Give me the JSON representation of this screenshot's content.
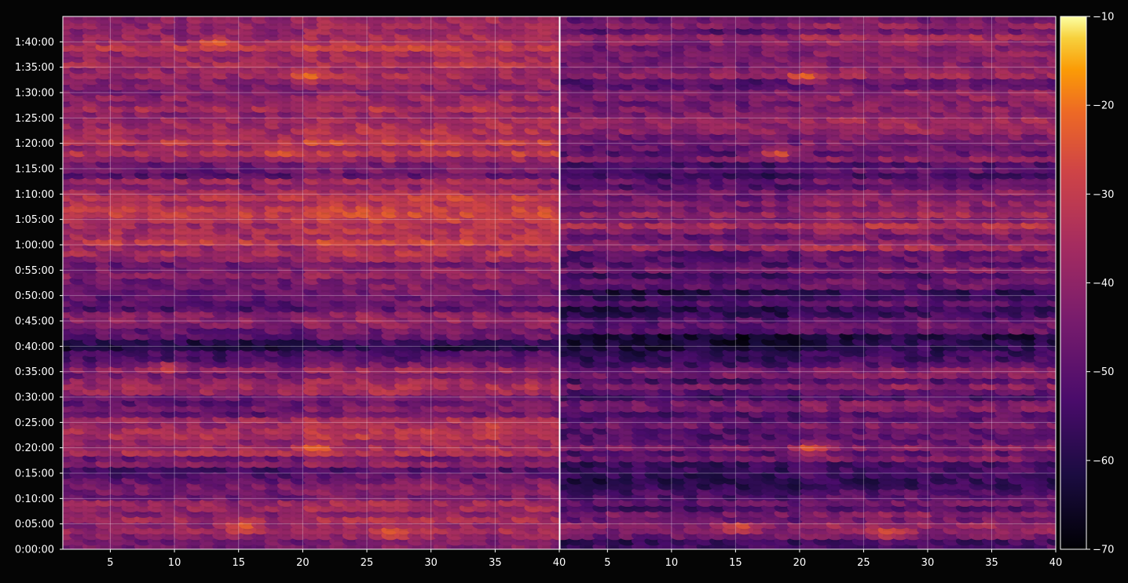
{
  "chart_data": {
    "type": "heatmap",
    "title": "",
    "xlabel": "",
    "ylabel": "",
    "background": "#050505",
    "colormap": "inferno",
    "grid": true,
    "panels": [
      {
        "xlim": [
          1.3,
          40
        ],
        "x_ticks": [
          "5",
          "10",
          "15",
          "20",
          "25",
          "30",
          "35",
          "40"
        ],
        "x_tick_values": [
          5,
          10,
          15,
          20,
          25,
          30,
          35,
          40
        ]
      },
      {
        "xlim": [
          1.3,
          40
        ],
        "x_ticks": [
          "5",
          "10",
          "15",
          "20",
          "25",
          "30",
          "35",
          "40"
        ],
        "x_tick_values": [
          5,
          10,
          15,
          20,
          25,
          30,
          35,
          40
        ]
      }
    ],
    "y_axis": {
      "unit": "seconds",
      "range": [
        0,
        6300
      ],
      "ticks": [
        "0:00:00",
        "0:05:00",
        "0:10:00",
        "0:15:00",
        "0:20:00",
        "0:25:00",
        "0:30:00",
        "0:35:00",
        "0:40:00",
        "0:45:00",
        "0:50:00",
        "0:55:00",
        "1:00:00",
        "1:05:00",
        "1:10:00",
        "1:15:00",
        "1:20:00",
        "1:25:00",
        "1:30:00",
        "1:35:00",
        "1:40:00"
      ],
      "tick_values": [
        0,
        300,
        600,
        900,
        1200,
        1500,
        1800,
        2100,
        2400,
        2700,
        3000,
        3300,
        3600,
        3900,
        4200,
        4500,
        4800,
        5100,
        5400,
        5700,
        6000
      ]
    },
    "colorbar": {
      "range": [
        -70,
        -10
      ],
      "ticks": [
        "−10",
        "−20",
        "−30",
        "−40",
        "−50",
        "−60",
        "−70"
      ],
      "tick_values": [
        -10,
        -20,
        -30,
        -40,
        -50,
        -60,
        -70
      ]
    },
    "columns": 39,
    "rows": 96,
    "row_profile_time_values": [
      0,
      300,
      600,
      900,
      1200,
      1500,
      1800,
      2100,
      2400,
      2700,
      3000,
      3300,
      3600,
      3900,
      4200,
      4500,
      4800,
      5100,
      5400,
      5700,
      6000,
      6300
    ],
    "row_profile_levels_left": [
      -50,
      -38,
      -48,
      -54,
      -40,
      -44,
      -46,
      -42,
      -62,
      -44,
      -52,
      -46,
      -38,
      -36,
      -40,
      -48,
      -36,
      -40,
      -44,
      -38,
      -40,
      -40
    ],
    "row_profile_levels_right": [
      -56,
      -44,
      -56,
      -60,
      -46,
      -50,
      -52,
      -48,
      -66,
      -50,
      -58,
      -52,
      -44,
      -42,
      -46,
      -54,
      -42,
      -46,
      -50,
      -44,
      -46,
      -46
    ],
    "hotspots": [
      {
        "panel": 0,
        "x": 15.5,
        "t": 270,
        "level": -24
      },
      {
        "panel": 0,
        "x": 21.0,
        "t": 1200,
        "level": -24
      },
      {
        "panel": 0,
        "x": 20.5,
        "t": 5600,
        "level": -22
      },
      {
        "panel": 0,
        "x": 13.5,
        "t": 6000,
        "level": -26
      },
      {
        "panel": 0,
        "x": 18.5,
        "t": 4690,
        "level": -27
      },
      {
        "panel": 0,
        "x": 9.5,
        "t": 2160,
        "level": -30
      },
      {
        "panel": 0,
        "x": 27.0,
        "t": 200,
        "level": -26
      },
      {
        "panel": 0,
        "x": 35.0,
        "t": 1450,
        "level": -30
      },
      {
        "panel": 1,
        "x": 15.5,
        "t": 270,
        "level": -26
      },
      {
        "panel": 1,
        "x": 21.0,
        "t": 1200,
        "level": -26
      },
      {
        "panel": 1,
        "x": 20.5,
        "t": 5600,
        "level": -24
      },
      {
        "panel": 1,
        "x": 18.5,
        "t": 4690,
        "level": -28
      },
      {
        "panel": 1,
        "x": 27.0,
        "t": 200,
        "level": -27
      }
    ]
  }
}
